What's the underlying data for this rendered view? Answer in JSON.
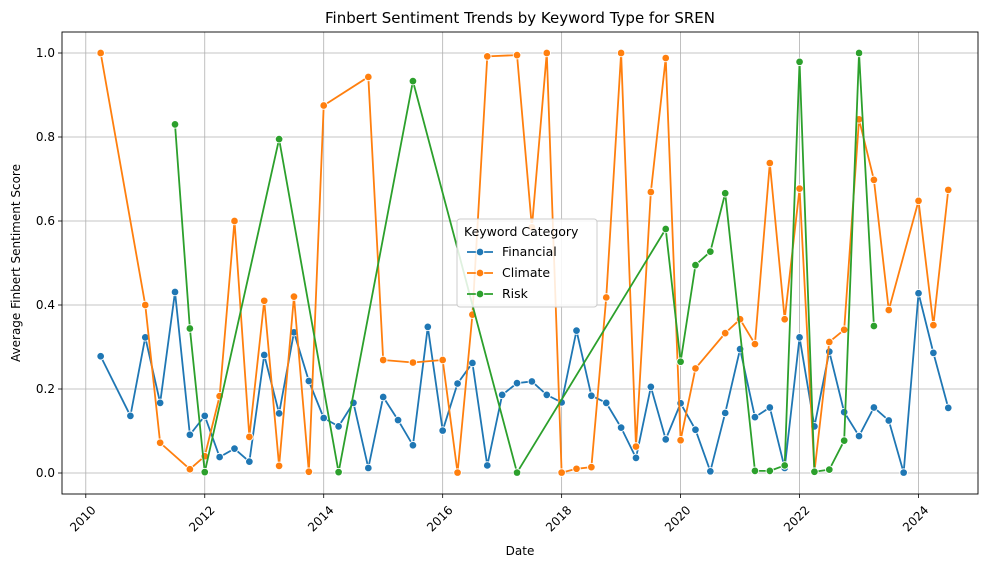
{
  "chart_data": {
    "type": "line",
    "title": "Finbert Sentiment Trends by Keyword Type for SREN",
    "xlabel": "Date",
    "ylabel": "Average Finbert Sentiment Score",
    "xlim": [
      2009.6,
      2025.0
    ],
    "ylim": [
      -0.05,
      1.05
    ],
    "xticks": [
      2010,
      2012,
      2014,
      2016,
      2018,
      2020,
      2022,
      2024
    ],
    "xtick_labels": [
      "2010",
      "2012",
      "2014",
      "2016",
      "2018",
      "2020",
      "2022",
      "2024"
    ],
    "yticks": [
      0.0,
      0.2,
      0.4,
      0.6,
      0.8,
      1.0
    ],
    "ytick_labels": [
      "0.0",
      "0.2",
      "0.4",
      "0.6",
      "0.8",
      "1.0"
    ],
    "grid": true,
    "legend_title": "Keyword Category",
    "legend_position": "center",
    "series": [
      {
        "name": "Financial",
        "color": "#1f77b4",
        "points": [
          [
            2010.25,
            0.278
          ],
          [
            2010.75,
            0.136
          ],
          [
            2011.0,
            0.323
          ],
          [
            2011.25,
            0.167
          ],
          [
            2011.5,
            0.431
          ],
          [
            2011.75,
            0.091
          ],
          [
            2012.0,
            0.136
          ],
          [
            2012.25,
            0.038
          ],
          [
            2012.5,
            0.058
          ],
          [
            2012.75,
            0.027
          ],
          [
            2013.0,
            0.281
          ],
          [
            2013.25,
            0.142
          ],
          [
            2013.5,
            0.335
          ],
          [
            2013.75,
            0.219
          ],
          [
            2014.0,
            0.131
          ],
          [
            2014.25,
            0.111
          ],
          [
            2014.5,
            0.167
          ],
          [
            2014.75,
            0.012
          ],
          [
            2015.0,
            0.181
          ],
          [
            2015.25,
            0.126
          ],
          [
            2015.5,
            0.066
          ],
          [
            2015.75,
            0.348
          ],
          [
            2016.0,
            0.101
          ],
          [
            2016.25,
            0.213
          ],
          [
            2016.5,
            0.262
          ],
          [
            2016.75,
            0.018
          ],
          [
            2017.0,
            0.186
          ],
          [
            2017.25,
            0.214
          ],
          [
            2017.5,
            0.218
          ],
          [
            2017.75,
            0.186
          ],
          [
            2018.0,
            0.168
          ],
          [
            2018.25,
            0.339
          ],
          [
            2018.5,
            0.184
          ],
          [
            2018.75,
            0.167
          ],
          [
            2019.0,
            0.108
          ],
          [
            2019.25,
            0.036
          ],
          [
            2019.5,
            0.205
          ],
          [
            2019.75,
            0.08
          ],
          [
            2020.0,
            0.166
          ],
          [
            2020.25,
            0.103
          ],
          [
            2020.5,
            0.004
          ],
          [
            2020.75,
            0.143
          ],
          [
            2021.0,
            0.295
          ],
          [
            2021.25,
            0.133
          ],
          [
            2021.5,
            0.156
          ],
          [
            2021.75,
            0.012
          ],
          [
            2022.0,
            0.323
          ],
          [
            2022.25,
            0.111
          ],
          [
            2022.5,
            0.289
          ],
          [
            2022.75,
            0.145
          ],
          [
            2023.0,
            0.088
          ],
          [
            2023.25,
            0.156
          ],
          [
            2023.5,
            0.125
          ],
          [
            2023.75,
            0.001
          ],
          [
            2024.0,
            0.428
          ],
          [
            2024.25,
            0.286
          ],
          [
            2024.5,
            0.155
          ]
        ]
      },
      {
        "name": "Climate",
        "color": "#ff7f0e",
        "points": [
          [
            2010.25,
            1.0
          ],
          [
            2011.0,
            0.4
          ],
          [
            2011.25,
            0.072
          ],
          [
            2011.75,
            0.009
          ],
          [
            2012.0,
            0.04
          ],
          [
            2012.25,
            0.183
          ],
          [
            2012.5,
            0.6
          ],
          [
            2012.75,
            0.086
          ],
          [
            2013.0,
            0.41
          ],
          [
            2013.25,
            0.017
          ],
          [
            2013.5,
            0.42
          ],
          [
            2013.75,
            0.003
          ],
          [
            2014.0,
            0.875
          ],
          [
            2014.75,
            0.943
          ],
          [
            2015.0,
            0.269
          ],
          [
            2015.5,
            0.263
          ],
          [
            2016.0,
            0.269
          ],
          [
            2016.25,
            0.001
          ],
          [
            2016.5,
            0.377
          ],
          [
            2016.75,
            0.992
          ],
          [
            2017.25,
            0.995
          ],
          [
            2017.5,
            0.585
          ],
          [
            2017.75,
            1.0
          ],
          [
            2018.0,
            0.001
          ],
          [
            2018.25,
            0.01
          ],
          [
            2018.5,
            0.014
          ],
          [
            2018.75,
            0.418
          ],
          [
            2019.0,
            1.0
          ],
          [
            2019.25,
            0.063
          ],
          [
            2019.5,
            0.669
          ],
          [
            2019.75,
            0.988
          ],
          [
            2020.0,
            0.078
          ],
          [
            2020.25,
            0.249
          ],
          [
            2020.75,
            0.333
          ],
          [
            2021.0,
            0.366
          ],
          [
            2021.25,
            0.307
          ],
          [
            2021.5,
            0.738
          ],
          [
            2021.75,
            0.366
          ],
          [
            2022.0,
            0.677
          ],
          [
            2022.25,
            0.003
          ],
          [
            2022.5,
            0.312
          ],
          [
            2022.75,
            0.341
          ],
          [
            2023.0,
            0.842
          ],
          [
            2023.25,
            0.698
          ],
          [
            2023.5,
            0.388
          ],
          [
            2024.0,
            0.648
          ],
          [
            2024.25,
            0.352
          ],
          [
            2024.5,
            0.674
          ]
        ]
      },
      {
        "name": "Risk",
        "color": "#2ca02c",
        "points": [
          [
            2011.5,
            0.83
          ],
          [
            2011.75,
            0.344
          ],
          [
            2012.0,
            0.002
          ],
          [
            2013.25,
            0.795
          ],
          [
            2014.25,
            0.002
          ],
          [
            2015.5,
            0.933
          ],
          [
            2017.25,
            0.001
          ],
          [
            2019.75,
            0.581
          ],
          [
            2020.0,
            0.265
          ],
          [
            2020.25,
            0.495
          ],
          [
            2020.5,
            0.527
          ],
          [
            2020.75,
            0.666
          ],
          [
            2021.25,
            0.005
          ],
          [
            2021.5,
            0.005
          ],
          [
            2021.75,
            0.018
          ],
          [
            2022.0,
            0.979
          ],
          [
            2022.25,
            0.003
          ],
          [
            2022.5,
            0.008
          ],
          [
            2022.75,
            0.077
          ],
          [
            2023.0,
            1.0
          ],
          [
            2023.25,
            0.35
          ]
        ]
      }
    ]
  }
}
